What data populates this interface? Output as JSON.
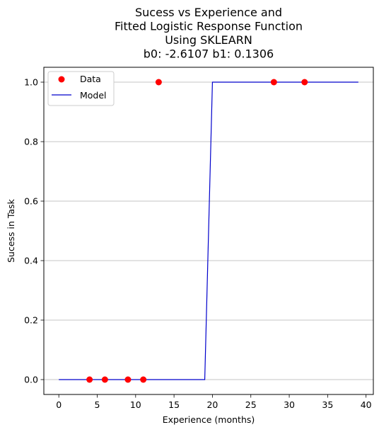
{
  "chart_data": {
    "type": "scatter",
    "title_lines": [
      "Sucess vs Experience and",
      "Fitted Logistic Response Function",
      "Using SKLEARN",
      "b0: -2.6107 b1: 0.1306"
    ],
    "xlabel": "Experience (months)",
    "ylabel": "Sucess in Task",
    "xlim": [
      -1.95,
      40.95
    ],
    "ylim": [
      -0.05,
      1.05
    ],
    "xticks": [
      0,
      5,
      10,
      15,
      20,
      25,
      30,
      35,
      40
    ],
    "xtick_labels": [
      "0",
      "5",
      "10",
      "15",
      "20",
      "25",
      "30",
      "35",
      "40"
    ],
    "yticks": [
      0.0,
      0.2,
      0.4,
      0.6,
      0.8,
      1.0
    ],
    "ytick_labels": [
      "0.0",
      "0.2",
      "0.4",
      "0.6",
      "0.8",
      "1.0"
    ],
    "grid": "y",
    "legend_position": "top-left",
    "series": [
      {
        "name": "Data",
        "kind": "scatter",
        "color": "#ff0000",
        "x": [
          4,
          6,
          9,
          11,
          13,
          28,
          32
        ],
        "y": [
          0,
          0,
          0,
          0,
          1,
          1,
          1
        ]
      },
      {
        "name": "Model",
        "kind": "line",
        "color": "#0000cc",
        "x": [
          0,
          19,
          20,
          39
        ],
        "y": [
          0,
          0,
          1,
          1
        ]
      }
    ]
  }
}
